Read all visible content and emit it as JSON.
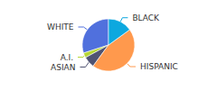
{
  "chart_data": {
    "type": "pie",
    "categories": [
      "WHITE",
      "A.I.",
      "ASIAN",
      "HISPANIC",
      "BLACK"
    ],
    "values": [
      30,
      3,
      7,
      45,
      15
    ]
  }
}
